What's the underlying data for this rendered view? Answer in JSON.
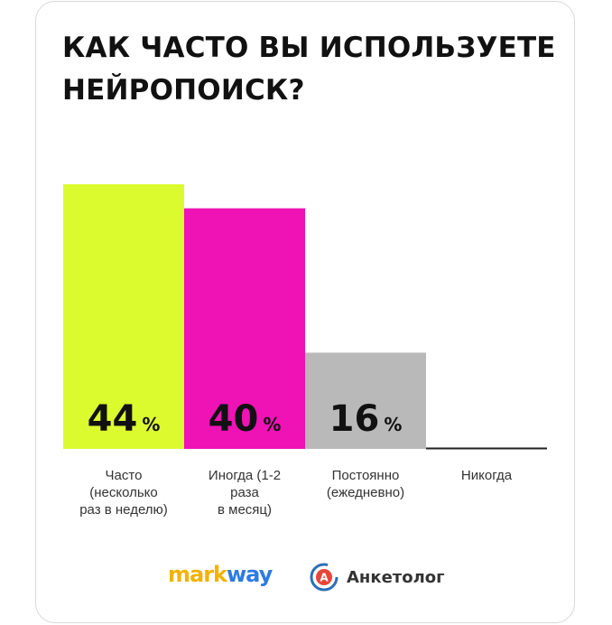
{
  "chart_data": {
    "type": "bar",
    "title": "КАК ЧАСТО ВЫ ИСПОЛЬЗУЕТЕ\nНЕЙРОПОИСК?",
    "categories": [
      "Часто\n(несколько\nраз в неделю)",
      "Иногда (1-2\nраза\nв месяц)",
      "Постоянно\n(ежедневно)",
      "Никогда"
    ],
    "values": [
      44,
      40,
      16,
      0
    ],
    "value_labels": [
      "44",
      "40",
      "16",
      ""
    ],
    "unit": "%",
    "colors": [
      "#dcfb2f",
      "#ef12b5",
      "#b8b9b8",
      "#222222"
    ],
    "ylim": [
      0,
      44
    ],
    "grid": false,
    "legend": "none"
  },
  "logos": {
    "markway_part1": "mark",
    "markway_part2": "way",
    "anketolog_text": "Анкетолог",
    "anketolog_icon_letter": "A"
  }
}
